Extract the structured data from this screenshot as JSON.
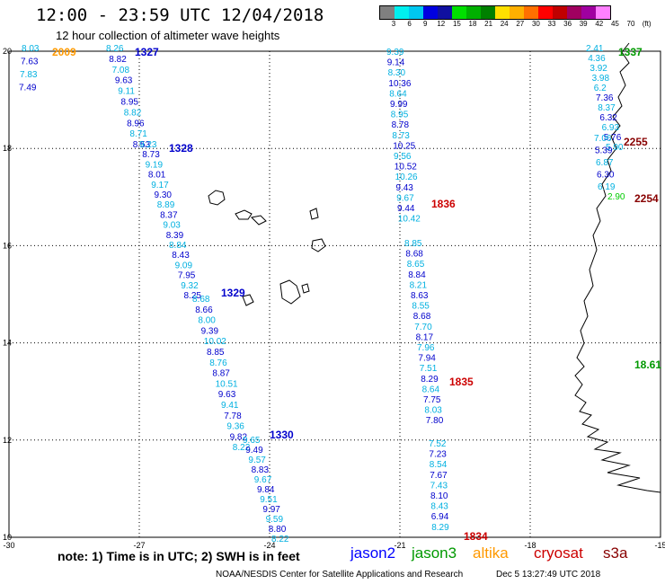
{
  "header": {
    "title": "12:00 - 23:59 UTC 12/04/2018",
    "subtitle": "12 hour collection of altimeter wave heights"
  },
  "colorscale": {
    "labels": [
      "3",
      "6",
      "9",
      "12",
      "15",
      "18",
      "21",
      "24",
      "27",
      "30",
      "33",
      "36",
      "39",
      "42",
      "45",
      "70",
      "(ft)"
    ],
    "colors": [
      "#808080",
      "#00f0f0",
      "#00c8f0",
      "#0000e0",
      "#1010a0",
      "#00e000",
      "#00b000",
      "#008000",
      "#ffe000",
      "#ffb000",
      "#ff7000",
      "#ff0000",
      "#c00000",
      "#a00060",
      "#a000a0",
      "#ff80ff"
    ]
  },
  "axes": {
    "x_ticks": [
      "-30",
      "-27",
      "-24",
      "-21",
      "-18",
      "-15"
    ],
    "y_ticks": [
      "20",
      "18",
      "16",
      "14",
      "12",
      "10"
    ]
  },
  "passes": [
    {
      "label": "2009",
      "color": "#ff9900",
      "values": [
        "8.03",
        "7.63",
        "7.83",
        "7.49"
      ]
    },
    {
      "label": "1327",
      "color": "#0000cc",
      "values": [
        "8.26",
        "8.82",
        "7.08",
        "9.63",
        "9.11",
        "8.95",
        "8.82",
        "8.96",
        "8.71",
        "8.53"
      ]
    },
    {
      "label": "1328",
      "color": "#0000cc",
      "values": [
        "9.23",
        "8.73",
        "9.19",
        "8.01",
        "9.17",
        "9.30",
        "8.89",
        "8.37",
        "9.03",
        "8.39",
        "8.84",
        "8.43",
        "9.09",
        "7.95",
        "9.32",
        "8.25"
      ]
    },
    {
      "label": "1329",
      "color": "#0000cc",
      "values": [
        "8.68",
        "8.66",
        "8.00",
        "9.39",
        "10.02",
        "8.85",
        "8.76",
        "8.87",
        "10.51",
        "9.63",
        "9.41",
        "7.78",
        "9.36",
        "9.82",
        "8.22"
      ]
    },
    {
      "label": "1330",
      "color": "#0000cc",
      "values": [
        "9.65",
        "9.49",
        "9.57",
        "8.83",
        "9.67",
        "9.84",
        "9.51",
        "9.97",
        "9.59",
        "8.80",
        "8.22"
      ]
    },
    {
      "label": "1836",
      "color": "#cc0000",
      "values": [
        "9.39",
        "9.14",
        "8.30",
        "10.36",
        "8.64",
        "9.99",
        "8.95",
        "8.78",
        "8.73",
        "10.25",
        "9.56",
        "10.52",
        "10.26",
        "9.43",
        "9.67",
        "9.44",
        "10.42"
      ]
    },
    {
      "label": "1835",
      "color": "#cc0000",
      "values": [
        "8.85",
        "8.68",
        "8.65",
        "8.84",
        "8.21",
        "8.63",
        "8.55",
        "8.68",
        "7.70",
        "8.17",
        "7.96",
        "7.94",
        "7.51",
        "8.29",
        "8.64",
        "7.75",
        "8.03",
        "7.80"
      ]
    },
    {
      "label": "1834",
      "color": "#cc0000",
      "values": [
        "7.52",
        "7.23",
        "8.54",
        "7.67",
        "7.43",
        "8.10",
        "8.43",
        "6.94",
        "8.29"
      ]
    },
    {
      "label": "1337",
      "color": "#009900",
      "values": [
        "2.41",
        "4.36",
        "3.92",
        "3.98",
        "6.2",
        "7.36",
        "8.37",
        "6.32",
        "6.93",
        "5.76",
        "5.90"
      ]
    },
    {
      "label": "2255",
      "color": "#880000",
      "values": [
        "7.06",
        "5.39",
        "6.87",
        "6.30",
        "6.19"
      ]
    },
    {
      "label": "2254",
      "color": "#880000",
      "values": [
        "2.90"
      ]
    },
    {
      "label": "18.61",
      "color": "#009900",
      "values": []
    }
  ],
  "footer": {
    "note": "note:  1) Time is in UTC;  2) SWH is in feet",
    "legend": [
      {
        "name": "jason2",
        "color": "#0000ff"
      },
      {
        "name": "jason3",
        "color": "#009900"
      },
      {
        "name": "altika",
        "color": "#ff9900"
      },
      {
        "name": "cryosat",
        "color": "#cc0000"
      },
      {
        "name": "s3a",
        "color": "#880000"
      }
    ],
    "credit": "NOAA/NESDIS Center for Satellite Applications and Research",
    "timestamp": "Dec  5 13:27:49 UTC 2018"
  }
}
